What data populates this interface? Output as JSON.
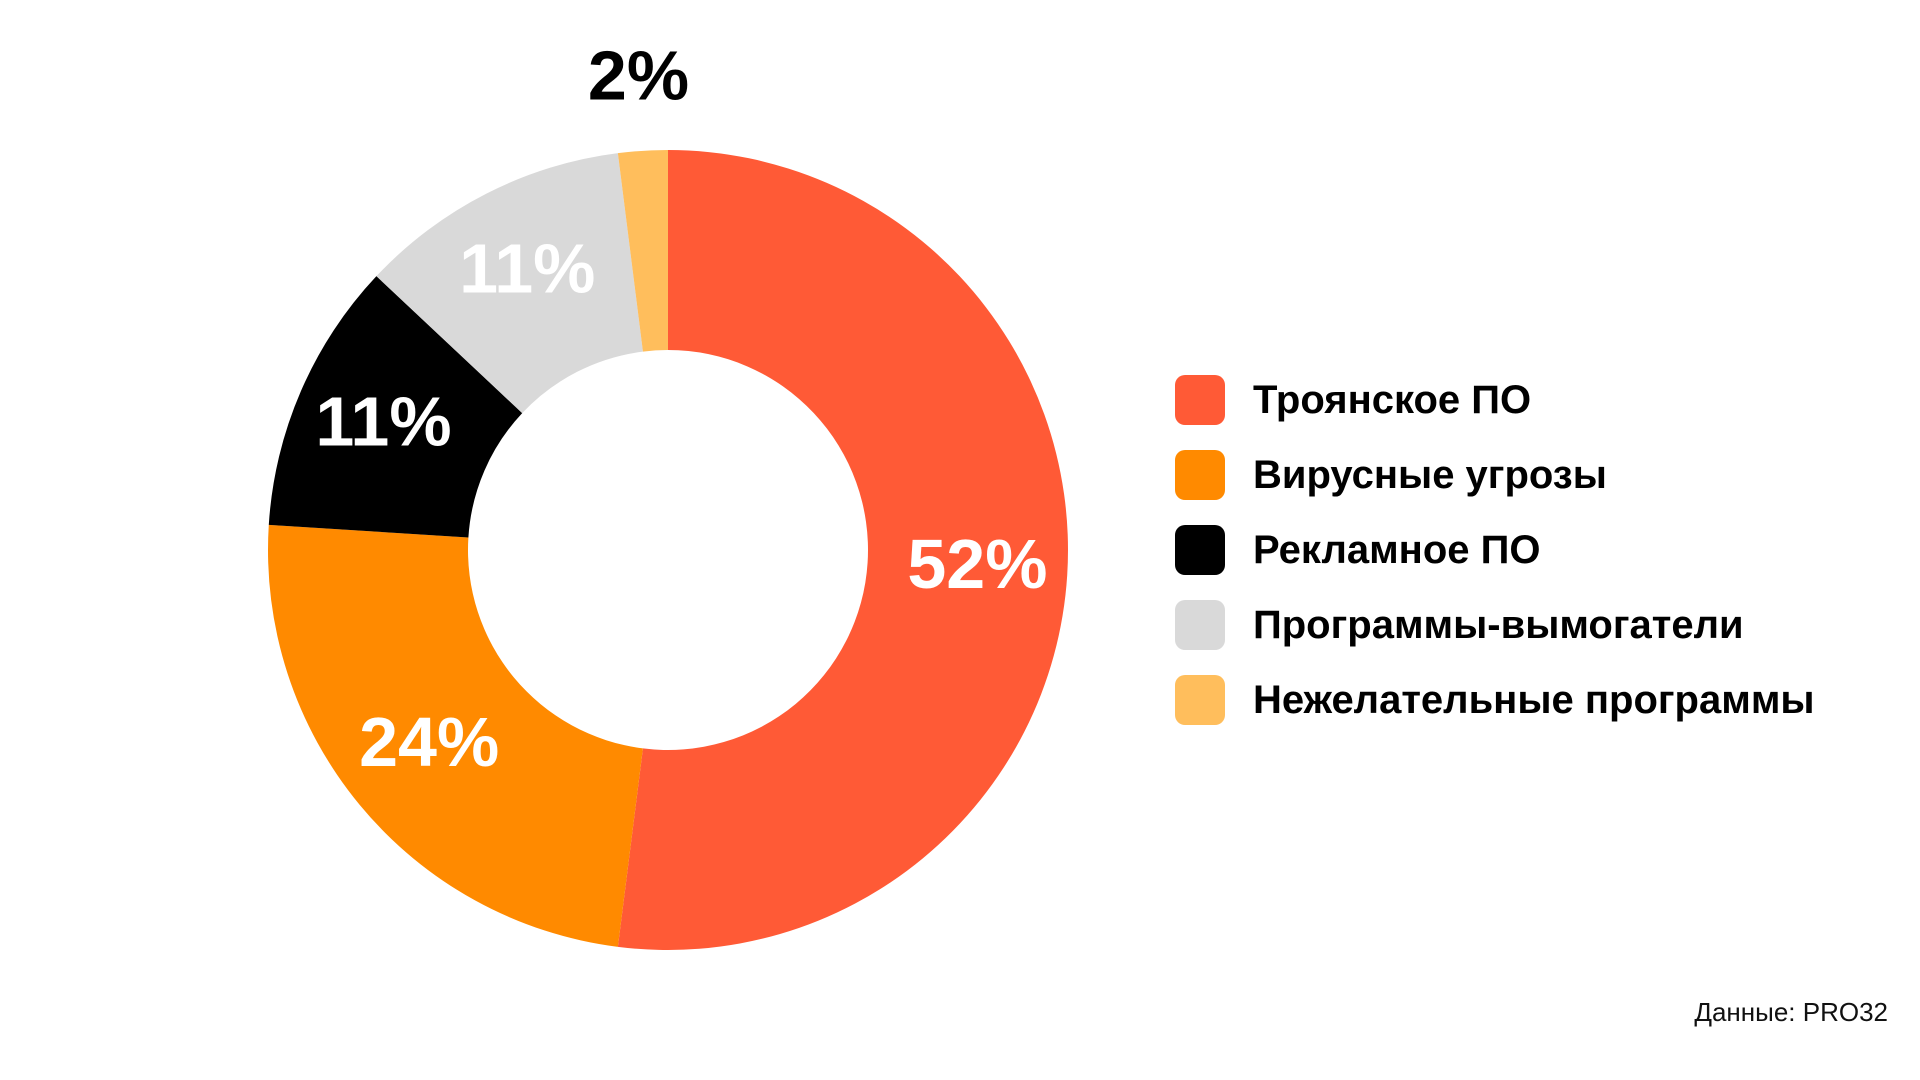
{
  "chart_data": {
    "type": "pie",
    "donut": true,
    "categories": [
      "Троянское ПО",
      "Вирусные угрозы",
      "Рекламное ПО",
      "Программы-вымогатели",
      "Нежелательные программы"
    ],
    "values": [
      52,
      24,
      11,
      11,
      2
    ],
    "value_labels": [
      "52%",
      "24%",
      "11%",
      "11%",
      "2%"
    ],
    "colors": [
      "#FF5A36",
      "#FF8A00",
      "#000000",
      "#D9D9D9",
      "#FFBE5C"
    ],
    "label_colors": [
      "#FFFFFF",
      "#FFFFFF",
      "#FFFFFF",
      "#FFFFFF",
      "#000000"
    ],
    "start": "top",
    "direction": "clockwise",
    "legend_position": "right",
    "source": "Данные: PRO32"
  }
}
